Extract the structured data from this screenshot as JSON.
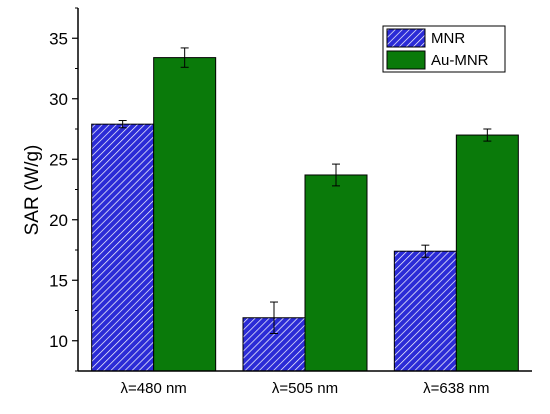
{
  "chart_data": {
    "type": "bar",
    "title": "",
    "xlabel": "",
    "ylabel": "SAR (W/g)",
    "categories": [
      "λ=480 nm",
      "λ=505 nm",
      "λ=638 nm"
    ],
    "ylim": [
      7.5,
      37.5
    ],
    "yticks": [
      10,
      15,
      20,
      25,
      30,
      35
    ],
    "series": [
      {
        "name": "MNR",
        "values": [
          27.9,
          11.9,
          17.4
        ],
        "errors": [
          0.3,
          1.3,
          0.5
        ],
        "color": "#2b2bd6",
        "pattern": "diagonal-hatch"
      },
      {
        "name": "Au-MNR",
        "values": [
          33.4,
          23.7,
          27.0
        ],
        "errors": [
          0.8,
          0.9,
          0.5
        ],
        "color": "#0a7a0a",
        "pattern": "solid"
      }
    ],
    "legend_position": "top-right",
    "grid": false
  }
}
